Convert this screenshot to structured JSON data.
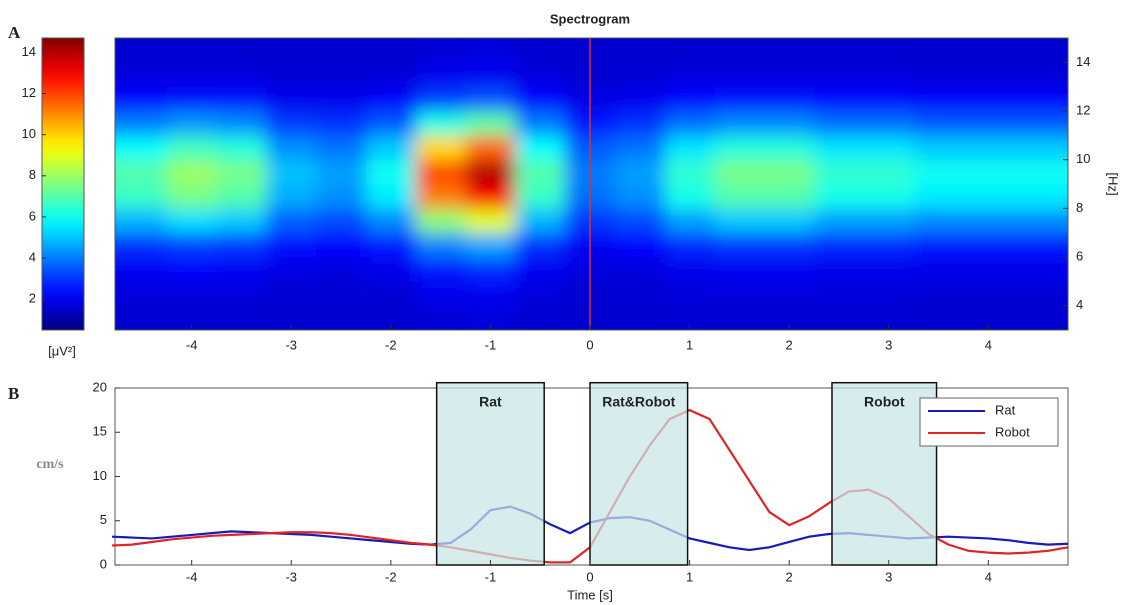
{
  "chart_data": [
    {
      "type": "heatmap",
      "panel_label": "A",
      "title": "Spectrogram",
      "y_label": "[Hz]",
      "colorbar_label": "[μV²]",
      "xlim": [
        -4.77,
        4.8
      ],
      "xticks": [
        -4,
        -3,
        -2,
        -1,
        0,
        1,
        2,
        3,
        4
      ],
      "ylim": [
        3,
        15
      ],
      "yticks": [
        4,
        6,
        8,
        10,
        12,
        14
      ],
      "clim": [
        0.5,
        14.7
      ],
      "cticks": [
        2,
        4,
        6,
        8,
        10,
        12,
        14
      ],
      "vline_x": 0,
      "vline_color": "#e03030",
      "colormap": "jet",
      "x": [
        -4.5,
        -4,
        -3.5,
        -3,
        -2.5,
        -2,
        -1.5,
        -1,
        -0.5,
        0,
        0.5,
        1,
        1.5,
        2,
        2.5,
        3,
        3.5,
        4,
        4.5
      ],
      "y": [
        3.5,
        4.5,
        5.5,
        6.5,
        7.5,
        8.5,
        9.5,
        10.5,
        11.5,
        12.5,
        13.5,
        14.5
      ],
      "z": [
        [
          1.6,
          1.6,
          1.6,
          1.6,
          1.6,
          1.6,
          1.7,
          1.8,
          1.6,
          1.6,
          1.6,
          1.6,
          1.6,
          1.6,
          1.6,
          1.6,
          1.6,
          1.6,
          1.6
        ],
        [
          1.8,
          1.8,
          1.8,
          1.7,
          1.7,
          1.7,
          2.0,
          2.1,
          1.8,
          1.6,
          1.7,
          1.8,
          1.8,
          1.8,
          1.8,
          1.8,
          1.7,
          1.7,
          1.7
        ],
        [
          2.1,
          2.2,
          2.1,
          1.9,
          1.8,
          2.0,
          2.6,
          2.8,
          2.1,
          1.8,
          1.8,
          2.0,
          2.1,
          2.1,
          2.0,
          2.0,
          2.0,
          2.0,
          2.0
        ],
        [
          2.9,
          3.1,
          3.0,
          2.4,
          2.3,
          2.6,
          4.1,
          4.6,
          2.9,
          2.1,
          2.3,
          2.8,
          3.0,
          3.0,
          2.8,
          2.8,
          2.6,
          2.6,
          2.6
        ],
        [
          4.8,
          5.4,
          5.1,
          3.6,
          3.3,
          4.2,
          7.8,
          9.0,
          4.8,
          3.0,
          3.3,
          4.5,
          5.1,
          5.1,
          4.5,
          4.5,
          4.2,
          4.2,
          4.2
        ],
        [
          6.6,
          7.5,
          7.0,
          4.7,
          4.3,
          5.6,
          11.2,
          13.0,
          6.6,
          3.8,
          4.3,
          6.1,
          7.0,
          7.0,
          6.1,
          6.1,
          5.6,
          5.6,
          5.6
        ],
        [
          7,
          8,
          7.5,
          5,
          4.5,
          6,
          12,
          14,
          7,
          4,
          4.5,
          6.5,
          7.5,
          7.5,
          6.5,
          6.5,
          6,
          6,
          6
        ],
        [
          5.9,
          6.7,
          6.3,
          4.3,
          3.9,
          5.1,
          9.9,
          11.5,
          5.9,
          3.5,
          3.9,
          5.5,
          6.3,
          6.3,
          5.5,
          5.5,
          5.1,
          5.1,
          5.1
        ],
        [
          4.0,
          4.4,
          4.2,
          3.1,
          2.9,
          3.5,
          6.2,
          7.1,
          4.0,
          2.6,
          2.9,
          3.8,
          4.2,
          4.2,
          3.8,
          3.8,
          3.5,
          3.5,
          3.5
        ],
        [
          2.3,
          2.5,
          2.4,
          2.0,
          2.0,
          2.2,
          3.1,
          3.4,
          2.3,
          1.9,
          2.0,
          2.3,
          2.4,
          2.4,
          2.3,
          2.3,
          2.2,
          2.2,
          2.2
        ],
        [
          1.8,
          1.8,
          1.8,
          1.7,
          1.7,
          1.7,
          2.0,
          2.1,
          1.8,
          1.6,
          1.7,
          1.8,
          1.8,
          1.8,
          1.8,
          1.8,
          1.7,
          1.7,
          1.7
        ],
        [
          1.6,
          1.6,
          1.6,
          1.6,
          1.6,
          1.6,
          1.7,
          1.8,
          1.6,
          1.6,
          1.6,
          1.6,
          1.6,
          1.6,
          1.6,
          1.6,
          1.6,
          1.6,
          1.6
        ]
      ]
    },
    {
      "type": "line",
      "panel_label": "B",
      "x_label": "Time [s]",
      "y_label": "cm/s",
      "legend": "upper right",
      "xlim": [
        -4.77,
        4.8
      ],
      "xticks": [
        -4,
        -3,
        -2,
        -1,
        0,
        1,
        2,
        3,
        4
      ],
      "ylim": [
        0,
        20
      ],
      "yticks": [
        0,
        5,
        10,
        15,
        20
      ],
      "x": [
        -4.8,
        -4.6,
        -4.4,
        -4.2,
        -4.0,
        -3.8,
        -3.6,
        -3.4,
        -3.2,
        -3.0,
        -2.8,
        -2.6,
        -2.4,
        -2.2,
        -2.0,
        -1.8,
        -1.6,
        -1.4,
        -1.2,
        -1.0,
        -0.8,
        -0.6,
        -0.4,
        -0.2,
        0,
        0.2,
        0.4,
        0.6,
        0.8,
        1.0,
        1.2,
        1.4,
        1.6,
        1.8,
        2.0,
        2.2,
        2.4,
        2.6,
        2.8,
        3.0,
        3.2,
        3.4,
        3.6,
        3.8,
        4.0,
        4.2,
        4.4,
        4.6,
        4.8
      ],
      "series": [
        {
          "name": "Rat",
          "color": "#1a1ab8",
          "values": [
            3.2,
            3.1,
            3.0,
            3.2,
            3.4,
            3.6,
            3.8,
            3.7,
            3.6,
            3.5,
            3.4,
            3.2,
            3.0,
            2.8,
            2.6,
            2.4,
            2.3,
            2.5,
            4.0,
            6.2,
            6.6,
            5.8,
            4.6,
            3.6,
            4.8,
            5.3,
            5.4,
            5.0,
            4.0,
            3.0,
            2.5,
            2.0,
            1.7,
            2.0,
            2.6,
            3.2,
            3.5,
            3.6,
            3.4,
            3.2,
            3.0,
            3.1,
            3.2,
            3.1,
            3.0,
            2.8,
            2.5,
            2.3,
            2.4
          ]
        },
        {
          "name": "Robot",
          "color": "#e02424",
          "values": [
            2.2,
            2.3,
            2.6,
            2.9,
            3.1,
            3.3,
            3.4,
            3.5,
            3.6,
            3.7,
            3.7,
            3.6,
            3.4,
            3.1,
            2.8,
            2.5,
            2.3,
            2.0,
            1.6,
            1.2,
            0.8,
            0.5,
            0.3,
            0.3,
            2.0,
            6.0,
            10.0,
            13.5,
            16.5,
            17.5,
            16.5,
            13.0,
            9.5,
            6.0,
            4.5,
            5.5,
            7.0,
            8.3,
            8.5,
            7.5,
            5.5,
            3.5,
            2.3,
            1.6,
            1.4,
            1.3,
            1.4,
            1.6,
            2.0
          ]
        }
      ],
      "boxes": [
        {
          "label": "Rat",
          "x": [
            -1.54,
            -0.46
          ],
          "y": [
            0,
            20.6
          ]
        },
        {
          "label": "Rat&Robot",
          "x": [
            0,
            0.98
          ],
          "y": [
            0,
            20.6
          ]
        },
        {
          "label": "Robot",
          "x": [
            2.43,
            3.48
          ],
          "y": [
            0,
            20.6
          ]
        }
      ]
    }
  ]
}
